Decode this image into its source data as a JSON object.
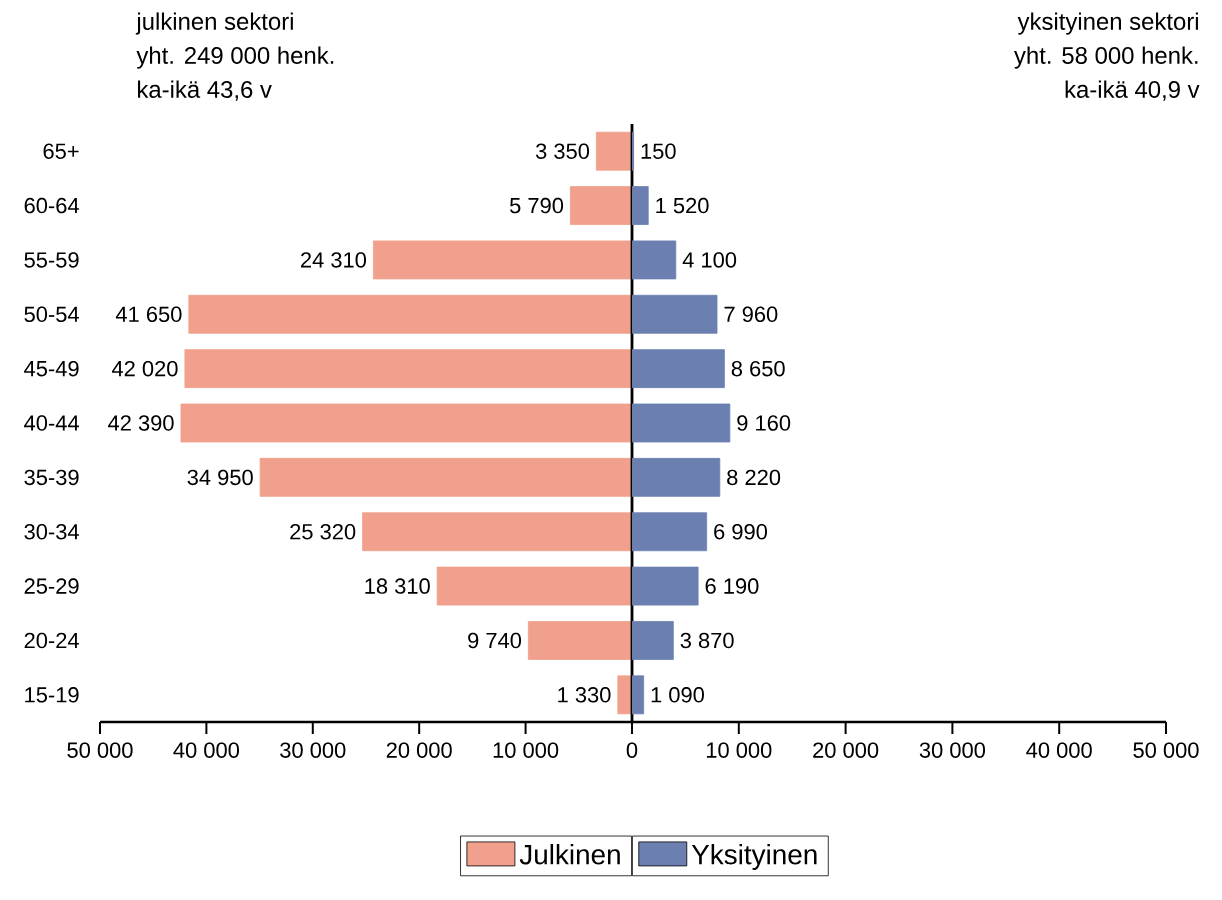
{
  "chart_data": [
    {
      "type": "bar",
      "orientation": "horizontal",
      "categories": [
        "65+",
        "60-64",
        "55-59",
        "50-54",
        "45-49",
        "40-44",
        "35-39",
        "30-34",
        "25-29",
        "20-24",
        "15-19"
      ],
      "series": [
        {
          "name": "Julkinen",
          "color": "#f0a08c",
          "values": [
            3350,
            5790,
            24310,
            41650,
            42020,
            42390,
            34950,
            25320,
            18310,
            9740,
            1330
          ],
          "value_labels": [
            "3 350",
            "5 790",
            "24 310",
            "41 650",
            "42 020",
            "42 390",
            "34 950",
            "25 320",
            "18 310",
            "9 740",
            "1 330"
          ]
        }
      ],
      "xlim": [
        50000,
        0
      ],
      "xticks": [
        {
          "value": 50000,
          "label": "50 000"
        },
        {
          "value": 40000,
          "label": "40 000"
        },
        {
          "value": 30000,
          "label": "30 000"
        },
        {
          "value": 20000,
          "label": "20 000"
        },
        {
          "value": 10000,
          "label": "10 000"
        },
        0
      ],
      "annotations": [
        "julkinen sektori",
        "yht. 249 000 henk.",
        "ka-ikä 43,6 v"
      ],
      "legend": "bottom"
    },
    {
      "type": "bar",
      "orientation": "horizontal",
      "categories": [
        null,
        null,
        null,
        null,
        null,
        null,
        null,
        null,
        null,
        null,
        null
      ],
      "series": [
        {
          "name": "Yksityinen",
          "color": "#6b7fb0",
          "values": [
            150,
            1520,
            4100,
            7960,
            8650,
            9160,
            8220,
            6990,
            6190,
            3870,
            1090
          ],
          "value_labels": [
            "150",
            "1 520",
            "4 100",
            "7 960",
            "8 650",
            "9 160",
            "8 220",
            "6 990",
            "6 190",
            "3 870",
            "1 090"
          ]
        }
      ],
      "xlim": [
        0,
        50000
      ],
      "xticks": [
        {
          "value": 0,
          "label": null
        },
        {
          "value": 10000,
          "label": "10 000"
        },
        {
          "value": 20000,
          "label": "20 000"
        },
        {
          "value": 30000,
          "label": "30 000"
        },
        {
          "value": 40000,
          "label": "40 000"
        },
        {
          "value": 50000,
          "label": "50 000"
        }
      ],
      "tick_labels": "x",
      "annotations": [
        "yksityinen sektori",
        "yht. 58 000 henk.",
        "ka-ikä 40,9 v"
      ],
      "legend": "bottom"
    }
  ]
}
